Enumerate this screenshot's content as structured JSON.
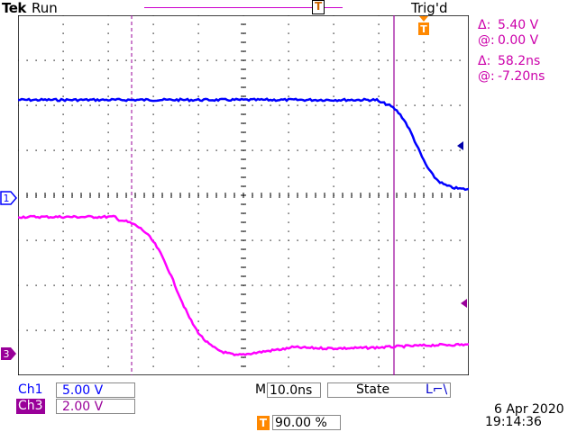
{
  "header": {
    "brand": "Tek",
    "acquisition_state": "Run",
    "trigger_state": "Trig'd",
    "trigger_position_marker": "T"
  },
  "measurements": {
    "voltage_delta_symbol": "Δ:",
    "voltage_delta": "5.40 V",
    "voltage_at_symbol": "@:",
    "voltage_at": "0.00 V",
    "time_delta_symbol": "Δ:",
    "time_delta": "58.2ns",
    "time_at_symbol": "@:",
    "time_at": "-7.20ns"
  },
  "channels": {
    "ch1": {
      "label": "Ch1",
      "scale": "5.00 V",
      "marker": "1",
      "color": "#0000ff"
    },
    "ch3": {
      "label": "Ch3",
      "scale": "2.00 V",
      "marker": "3",
      "color": "#ff00ff"
    }
  },
  "timebase": {
    "label": "M",
    "value": "10.0ns"
  },
  "trigger": {
    "mode": "State",
    "slope_glyph": "L⌐\\",
    "icon": "T",
    "position": "90.00 %"
  },
  "datetime": {
    "date": "6 Apr  2020",
    "time": "19:14:36"
  },
  "colors": {
    "grid": "#000000",
    "cursor": "#990099",
    "ch1_trace": "#0000ff",
    "ch3_trace": "#ff00ff",
    "trigger_orange": "#ff8800"
  }
}
